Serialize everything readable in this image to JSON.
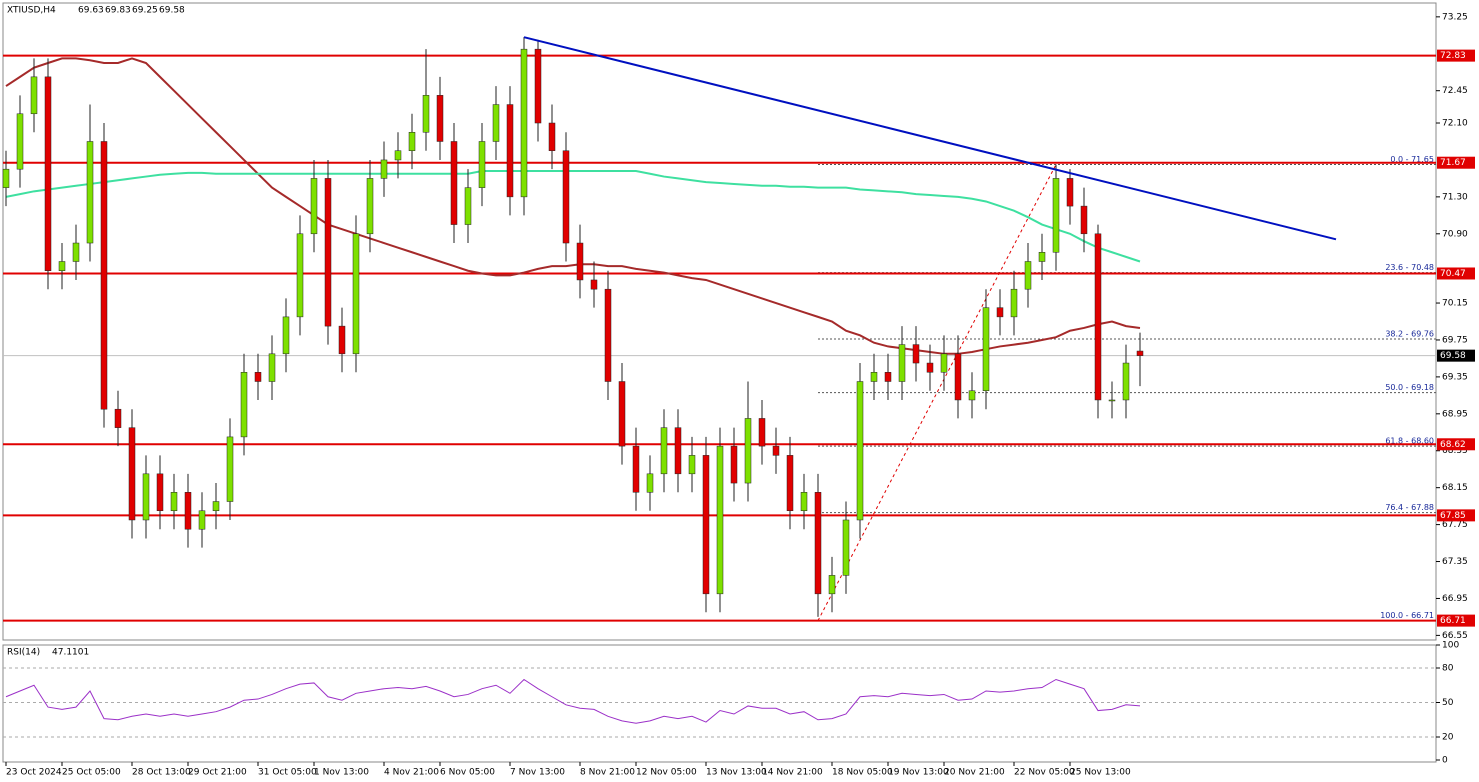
{
  "chart_data": {
    "type": "candlestick",
    "title": "XTIUSD,H4",
    "categories": [
      "23 Oct 2024",
      null,
      null,
      null,
      "25 Oct 05:00",
      null,
      null,
      null,
      null,
      "28 Oct 13:00",
      null,
      null,
      null,
      "29 Oct 21:00",
      null,
      null,
      null,
      null,
      "31 Oct 05:00",
      null,
      null,
      null,
      "1 Nov 13:00",
      null,
      null,
      null,
      null,
      "4 Nov 21:00",
      null,
      null,
      null,
      "6 Nov 05:00",
      null,
      null,
      null,
      null,
      "7 Nov 13:00",
      null,
      null,
      null,
      null,
      "8 Nov 21:00",
      null,
      null,
      null,
      "12 Nov 05:00",
      null,
      null,
      null,
      null,
      "13 Nov 13:00",
      null,
      null,
      null,
      "14 Nov 21:00",
      null,
      null,
      null,
      null,
      "18 Nov 05:00",
      null,
      null,
      null,
      "19 Nov 13:00",
      null,
      null,
      null,
      "20 Nov 21:00",
      null,
      null,
      null,
      null,
      "22 Nov 05:00",
      null,
      null,
      null,
      "25 Nov 13:00",
      null,
      null,
      null,
      null,
      null
    ],
    "open": [
      71.4,
      71.6,
      72.2,
      72.6,
      70.5,
      70.6,
      70.8,
      71.9,
      69.0,
      68.8,
      67.8,
      68.3,
      67.9,
      68.1,
      67.7,
      67.9,
      68.0,
      68.7,
      69.4,
      69.3,
      69.6,
      70.0,
      70.9,
      71.5,
      69.9,
      69.6,
      70.9,
      71.5,
      71.7,
      71.8,
      72.0,
      72.4,
      71.9,
      71.0,
      71.4,
      71.9,
      72.3,
      71.3,
      72.9,
      72.1,
      71.8,
      70.8,
      70.4,
      70.3,
      69.3,
      68.6,
      68.1,
      68.3,
      68.8,
      68.3,
      68.5,
      67.0,
      68.6,
      68.2,
      68.9,
      68.6,
      68.5,
      67.9,
      68.1,
      67.0,
      67.2,
      67.8,
      69.3,
      69.4,
      69.3,
      69.7,
      69.5,
      69.4,
      69.6,
      69.1,
      69.2,
      70.1,
      70.0,
      70.3,
      70.6,
      70.7,
      71.5,
      71.2,
      70.9,
      69.1,
      69.1,
      69.63
    ],
    "high": [
      71.8,
      72.4,
      72.8,
      72.8,
      70.8,
      71.0,
      72.3,
      72.1,
      69.2,
      69.0,
      68.5,
      68.5,
      68.3,
      68.3,
      68.1,
      68.2,
      68.9,
      69.6,
      69.6,
      69.8,
      70.2,
      71.1,
      71.7,
      71.7,
      70.1,
      71.1,
      71.7,
      71.9,
      72.0,
      72.2,
      72.9,
      72.6,
      72.1,
      71.6,
      72.1,
      72.5,
      72.5,
      73.03,
      73.0,
      72.3,
      72.0,
      71.0,
      70.6,
      70.5,
      69.5,
      68.8,
      68.5,
      69.0,
      69.0,
      68.7,
      68.7,
      68.8,
      68.8,
      69.3,
      69.1,
      68.8,
      68.7,
      68.3,
      68.3,
      67.4,
      68.0,
      69.5,
      69.6,
      69.6,
      69.9,
      69.9,
      69.7,
      69.8,
      69.8,
      69.4,
      70.3,
      70.3,
      70.5,
      70.8,
      70.9,
      71.65,
      71.6,
      71.4,
      71.0,
      69.3,
      69.7,
      69.83
    ],
    "low": [
      71.2,
      71.4,
      72.0,
      70.3,
      70.3,
      70.4,
      70.6,
      68.8,
      68.6,
      67.6,
      67.6,
      67.7,
      67.7,
      67.5,
      67.5,
      67.7,
      67.8,
      68.5,
      69.1,
      69.1,
      69.4,
      69.8,
      70.7,
      69.7,
      69.4,
      69.4,
      70.7,
      71.3,
      71.5,
      71.6,
      71.8,
      71.7,
      70.8,
      70.8,
      71.2,
      71.7,
      71.1,
      71.1,
      71.9,
      71.6,
      70.6,
      70.2,
      70.1,
      69.1,
      68.4,
      67.9,
      67.9,
      68.1,
      68.1,
      68.1,
      66.8,
      66.8,
      68.0,
      68.0,
      68.4,
      68.3,
      67.7,
      67.7,
      66.75,
      66.8,
      67.0,
      67.6,
      69.1,
      69.1,
      69.1,
      69.3,
      69.2,
      69.2,
      68.9,
      68.9,
      69.0,
      69.8,
      69.8,
      70.1,
      70.4,
      70.5,
      71.0,
      70.7,
      68.9,
      68.9,
      68.9,
      69.25
    ],
    "close": [
      71.6,
      72.2,
      72.6,
      70.5,
      70.6,
      70.8,
      71.9,
      69.0,
      68.8,
      67.8,
      68.3,
      67.9,
      68.1,
      67.7,
      67.9,
      68.0,
      68.7,
      69.4,
      69.3,
      69.6,
      70.0,
      70.9,
      71.5,
      69.9,
      69.6,
      70.9,
      71.5,
      71.7,
      71.8,
      72.0,
      72.4,
      71.9,
      71.0,
      71.4,
      71.9,
      72.3,
      71.3,
      72.9,
      72.1,
      71.8,
      70.8,
      70.4,
      70.3,
      69.3,
      68.6,
      68.1,
      68.3,
      68.8,
      68.3,
      68.5,
      67.0,
      68.6,
      68.2,
      68.9,
      68.6,
      68.5,
      67.9,
      68.1,
      67.0,
      67.2,
      67.8,
      69.3,
      69.4,
      69.3,
      69.7,
      69.5,
      69.4,
      69.6,
      69.1,
      69.2,
      70.1,
      70.0,
      70.3,
      70.6,
      70.7,
      71.5,
      71.2,
      70.9,
      69.1,
      69.1,
      69.5,
      69.58
    ],
    "up_color": "#7ee000",
    "down_color": "#e00000",
    "lines": [
      {
        "color": "#a52a2a",
        "values": [
          72.5,
          72.6,
          72.7,
          72.75,
          72.8,
          72.8,
          72.78,
          72.75,
          72.75,
          72.8,
          72.75,
          72.6,
          72.45,
          72.3,
          72.15,
          72.0,
          71.85,
          71.7,
          71.55,
          71.4,
          71.3,
          71.2,
          71.1,
          71.0,
          70.95,
          70.9,
          70.85,
          70.8,
          70.75,
          70.7,
          70.65,
          70.6,
          70.55,
          70.5,
          70.47,
          70.45,
          70.45,
          70.48,
          70.52,
          70.55,
          70.55,
          70.57,
          70.57,
          70.55,
          70.55,
          70.52,
          70.5,
          70.48,
          70.45,
          70.42,
          70.4,
          70.35,
          70.3,
          70.25,
          70.2,
          70.15,
          70.1,
          70.05,
          70.0,
          69.95,
          69.85,
          69.8,
          69.72,
          69.68,
          69.66,
          69.64,
          69.62,
          69.6,
          69.6,
          69.62,
          69.65,
          69.68,
          69.7,
          69.72,
          69.75,
          69.78,
          69.85,
          69.88,
          69.92,
          69.95,
          69.9,
          69.88
        ]
      },
      {
        "color": "#3ee0a0",
        "values": [
          71.3,
          71.33,
          71.36,
          71.38,
          71.4,
          71.42,
          71.44,
          71.46,
          71.48,
          71.5,
          71.52,
          71.54,
          71.55,
          71.56,
          71.56,
          71.55,
          71.55,
          71.55,
          71.55,
          71.55,
          71.55,
          71.55,
          71.55,
          71.55,
          71.55,
          71.55,
          71.55,
          71.55,
          71.55,
          71.55,
          71.55,
          71.55,
          71.55,
          71.55,
          71.58,
          71.58,
          71.58,
          71.58,
          71.58,
          71.58,
          71.58,
          71.58,
          71.58,
          71.58,
          71.58,
          71.58,
          71.55,
          71.52,
          71.5,
          71.48,
          71.46,
          71.45,
          71.44,
          71.43,
          71.42,
          71.42,
          71.41,
          71.41,
          71.4,
          71.4,
          71.4,
          71.38,
          71.37,
          71.36,
          71.35,
          71.33,
          71.32,
          71.31,
          71.3,
          71.28,
          71.25,
          71.2,
          71.15,
          71.08,
          71.0,
          70.95,
          70.9,
          70.82,
          70.75,
          70.7,
          70.65,
          70.6
        ]
      }
    ],
    "trendline": {
      "color": "#0010c0",
      "x": [
        37,
        95
      ],
      "y": [
        73.03,
        70.84
      ]
    },
    "levels": [
      72.83,
      71.67,
      70.47,
      68.62,
      67.85,
      66.71
    ],
    "level_color": "#e00000",
    "fib": {
      "color": "#e00000",
      "x": [
        58,
        75
      ],
      "levels": [
        {
          "label": "0.0 - 71.65",
          "value": 71.65
        },
        {
          "label": "23.6 - 70.48",
          "value": 70.48
        },
        {
          "label": "38.2 - 69.76",
          "value": 69.76
        },
        {
          "label": "50.0 - 69.18",
          "value": 69.18
        },
        {
          "label": "61.8 - 68.60",
          "value": 68.6
        },
        {
          "label": "76.4 - 67.88",
          "value": 67.88
        },
        {
          "label": "100.0 - 66.71",
          "value": 66.71
        }
      ]
    },
    "ylim": [
      66.5,
      73.4
    ],
    "yticks": [
      73.25,
      72.45,
      {
        "value": 72.1,
        "label": "72.10"
      },
      {
        "value": 71.3,
        "label": "71.30"
      },
      {
        "value": 70.9,
        "label": "70.90"
      },
      70.15,
      69.75,
      69.35,
      68.95,
      68.55,
      68.15,
      67.75,
      67.35,
      66.95,
      66.55
    ],
    "rsi": {
      "title": "RSI(14)",
      "color": "#9b30c8",
      "values": [
        55,
        60,
        65,
        46,
        44,
        46,
        60,
        36,
        35,
        38,
        40,
        38,
        40,
        38,
        40,
        42,
        46,
        52,
        53,
        57,
        62,
        66,
        67,
        55,
        52,
        58,
        60,
        62,
        63,
        62,
        64,
        60,
        55,
        57,
        62,
        65,
        58,
        70,
        62,
        55,
        48,
        45,
        44,
        38,
        34,
        32,
        34,
        38,
        36,
        38,
        33,
        43,
        40,
        47,
        45,
        45,
        40,
        42,
        35,
        36,
        40,
        55,
        56,
        55,
        58,
        57,
        56,
        57,
        52,
        53,
        60,
        59,
        60,
        62,
        63,
        70,
        66,
        62,
        43,
        44,
        48,
        47.1101
      ],
      "ylim": [
        0,
        100
      ],
      "yticks": [
        100,
        80,
        50,
        20,
        0
      ],
      "grid": [
        80,
        50,
        20
      ]
    }
  }
}
